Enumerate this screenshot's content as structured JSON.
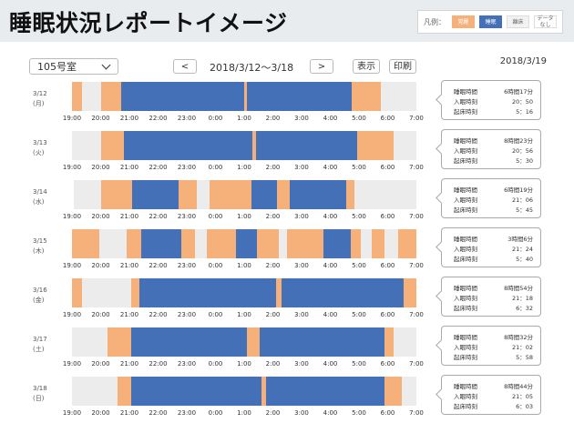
{
  "header": {
    "title": "睡眠状況レポートイメージ",
    "legend": {
      "label": "凡例：",
      "items": [
        {
          "key": "awake",
          "label": "覚醒"
        },
        {
          "key": "sleep",
          "label": "睡眠"
        },
        {
          "key": "absent",
          "label": "離床"
        },
        {
          "key": "nodata",
          "label": "データなし"
        }
      ]
    }
  },
  "toolbar": {
    "room": "105号室",
    "prev_label": "<",
    "date_range": "2018/3/12〜3/18",
    "next_label": ">",
    "show_label": "表示",
    "print_label": "印刷",
    "report_date": "2018/3/19"
  },
  "colors": {
    "awake": "#f6b07a",
    "sleep": "#4470b8",
    "absent": "#ececec"
  },
  "axis": {
    "start_hour": 19,
    "end_hour": 31,
    "ticks": [
      "19:00",
      "20:00",
      "21:00",
      "22:00",
      "23:00",
      "0:00",
      "1:00",
      "2:00",
      "3:00",
      "4:00",
      "5:00",
      "6:00",
      "7:00"
    ]
  },
  "summary_labels": {
    "total": "睡眠時間",
    "bed": "入眠時刻",
    "wake": "起床時刻"
  },
  "days": [
    {
      "date": "3/12",
      "weekday": "(月)",
      "total": "6時間17分",
      "bed": "20：50",
      "wake": "5：16",
      "segments": [
        {
          "state": "awake",
          "start": 19.0,
          "end": 19.35
        },
        {
          "state": "awake",
          "start": 20.0,
          "end": 20.7
        },
        {
          "state": "sleep",
          "start": 20.7,
          "end": 25.0
        },
        {
          "state": "awake",
          "start": 25.0,
          "end": 25.1
        },
        {
          "state": "sleep",
          "start": 25.1,
          "end": 28.75
        },
        {
          "state": "awake",
          "start": 28.75,
          "end": 29.75
        }
      ]
    },
    {
      "date": "3/13",
      "weekday": "(火)",
      "total": "8時間23分",
      "bed": "20：56",
      "wake": "5：30",
      "segments": [
        {
          "state": "awake",
          "start": 20.0,
          "end": 20.8
        },
        {
          "state": "sleep",
          "start": 20.8,
          "end": 25.3
        },
        {
          "state": "awake",
          "start": 25.3,
          "end": 25.4
        },
        {
          "state": "sleep",
          "start": 25.4,
          "end": 28.95
        },
        {
          "state": "awake",
          "start": 28.95,
          "end": 30.2
        }
      ]
    },
    {
      "date": "3/14",
      "weekday": "(水)",
      "total": "6時間19分",
      "bed": "21：06",
      "wake": "5：45",
      "segments": [
        {
          "state": "nodata",
          "start": 19.0,
          "end": 19.05
        },
        {
          "state": "awake",
          "start": 20.0,
          "end": 21.1
        },
        {
          "state": "sleep",
          "start": 21.1,
          "end": 22.7
        },
        {
          "state": "awake",
          "start": 22.7,
          "end": 23.35
        },
        {
          "state": "awake",
          "start": 23.8,
          "end": 25.25
        },
        {
          "state": "sleep",
          "start": 25.25,
          "end": 26.15
        },
        {
          "state": "awake",
          "start": 26.15,
          "end": 26.6
        },
        {
          "state": "sleep",
          "start": 26.6,
          "end": 28.55
        },
        {
          "state": "awake",
          "start": 28.55,
          "end": 28.85
        }
      ]
    },
    {
      "date": "3/15",
      "weekday": "(木)",
      "total": "3時間6分",
      "bed": "21：24",
      "wake": "5：40",
      "segments": [
        {
          "state": "awake",
          "start": 19.0,
          "end": 19.95
        },
        {
          "state": "awake",
          "start": 20.9,
          "end": 21.4
        },
        {
          "state": "sleep",
          "start": 21.4,
          "end": 22.8
        },
        {
          "state": "awake",
          "start": 22.8,
          "end": 23.3
        },
        {
          "state": "awake",
          "start": 23.7,
          "end": 24.7
        },
        {
          "state": "sleep",
          "start": 24.7,
          "end": 25.45
        },
        {
          "state": "awake",
          "start": 25.45,
          "end": 26.2
        },
        {
          "state": "awake",
          "start": 26.5,
          "end": 27.75
        },
        {
          "state": "sleep",
          "start": 27.75,
          "end": 28.7
        },
        {
          "state": "awake",
          "start": 28.7,
          "end": 29.05
        },
        {
          "state": "awake",
          "start": 29.45,
          "end": 29.9
        },
        {
          "state": "awake",
          "start": 30.35,
          "end": 31.0
        }
      ]
    },
    {
      "date": "3/16",
      "weekday": "(金)",
      "total": "8時間54分",
      "bed": "21：18",
      "wake": "6：32",
      "segments": [
        {
          "state": "awake",
          "start": 19.0,
          "end": 19.35
        },
        {
          "state": "awake",
          "start": 21.05,
          "end": 21.35
        },
        {
          "state": "sleep",
          "start": 21.35,
          "end": 26.1
        },
        {
          "state": "awake",
          "start": 26.1,
          "end": 26.3
        },
        {
          "state": "sleep",
          "start": 26.3,
          "end": 30.55
        },
        {
          "state": "awake",
          "start": 30.55,
          "end": 31.0
        }
      ]
    },
    {
      "date": "3/17",
      "weekday": "(土)",
      "total": "8時間32分",
      "bed": "21：02",
      "wake": "5：58",
      "segments": [
        {
          "state": "awake",
          "start": 20.25,
          "end": 21.05
        },
        {
          "state": "sleep",
          "start": 21.05,
          "end": 25.1
        },
        {
          "state": "awake",
          "start": 25.1,
          "end": 25.55
        },
        {
          "state": "sleep",
          "start": 25.55,
          "end": 29.9
        },
        {
          "state": "awake",
          "start": 29.9,
          "end": 30.2
        }
      ]
    },
    {
      "date": "3/18",
      "weekday": "(日)",
      "total": "8時間44分",
      "bed": "21：05",
      "wake": "6：03",
      "segments": [
        {
          "state": "awake",
          "start": 20.6,
          "end": 21.05
        },
        {
          "state": "sleep",
          "start": 21.05,
          "end": 25.6
        },
        {
          "state": "awake",
          "start": 25.6,
          "end": 25.75
        },
        {
          "state": "sleep",
          "start": 25.75,
          "end": 29.9
        },
        {
          "state": "awake",
          "start": 29.9,
          "end": 30.5
        }
      ]
    }
  ]
}
